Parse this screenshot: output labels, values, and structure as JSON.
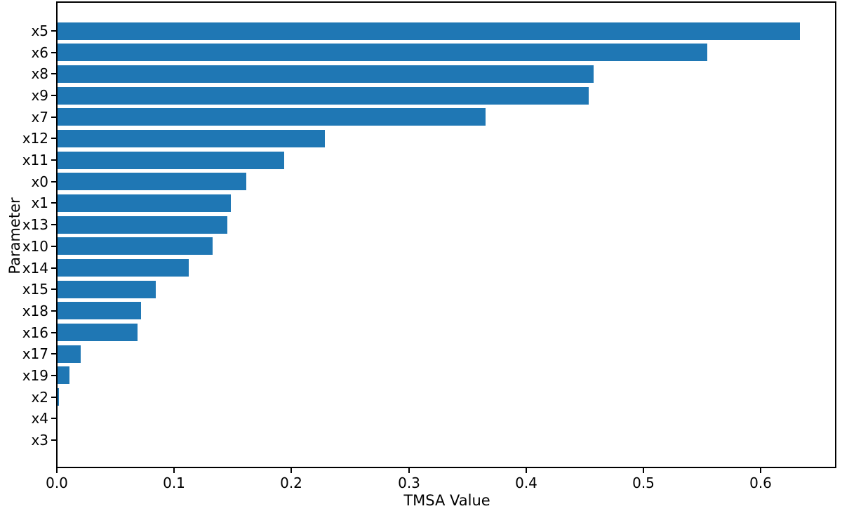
{
  "figure": {
    "background": "#ffffff",
    "text_color": "#000000"
  },
  "chart_data": {
    "type": "bar",
    "orientation": "horizontal",
    "title": "",
    "xlabel": "TMSA Value",
    "ylabel": "Parameter",
    "categories": [
      "x5",
      "x6",
      "x8",
      "x9",
      "x7",
      "x12",
      "x11",
      "x0",
      "x1",
      "x13",
      "x10",
      "x14",
      "x15",
      "x18",
      "x16",
      "x17",
      "x19",
      "x2",
      "x4",
      "x3"
    ],
    "values": [
      0.633,
      0.554,
      0.457,
      0.453,
      0.365,
      0.228,
      0.193,
      0.161,
      0.148,
      0.145,
      0.132,
      0.112,
      0.084,
      0.071,
      0.068,
      0.02,
      0.01,
      0.001,
      0.0002,
      0.0001
    ],
    "x_ticks": [
      0.0,
      0.1,
      0.2,
      0.3,
      0.4,
      0.5,
      0.6
    ],
    "x_tick_labels": [
      "0.0",
      "0.1",
      "0.2",
      "0.3",
      "0.4",
      "0.5",
      "0.6"
    ],
    "xlim": [
      0,
      0.6627
    ],
    "bar_color": "#1f77b4",
    "axis_color": "#000000",
    "grid": false,
    "legend": null
  }
}
